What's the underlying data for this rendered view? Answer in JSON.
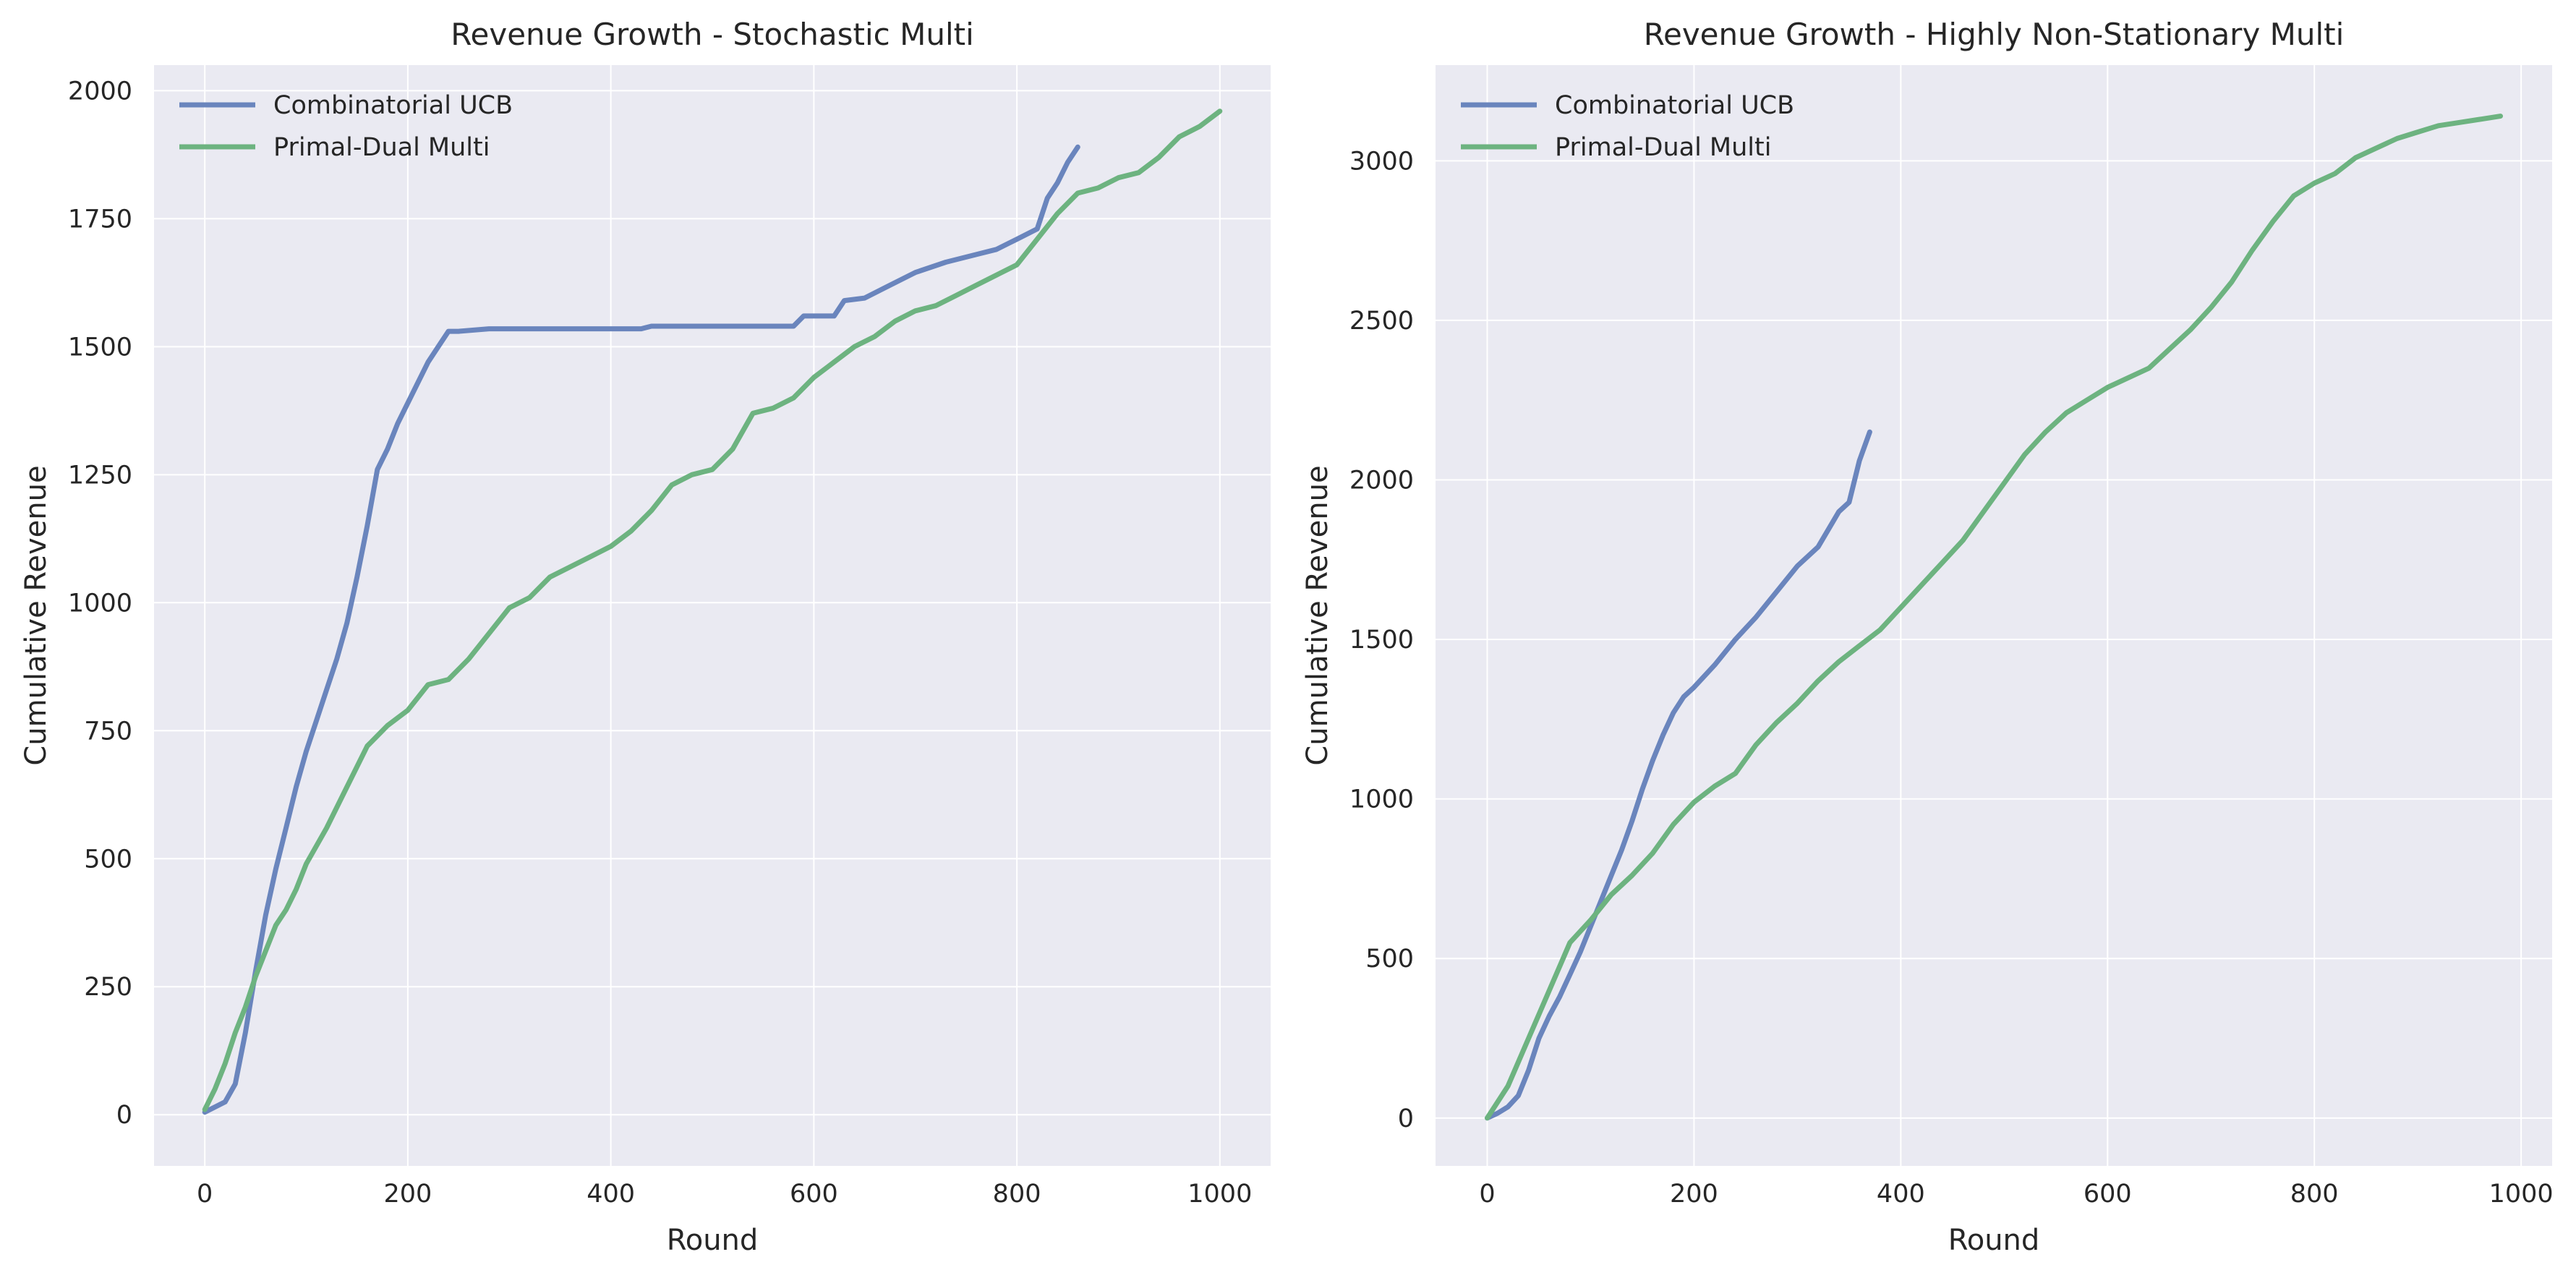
{
  "chart_data": [
    {
      "type": "line",
      "title": "Revenue Growth - Stochastic Multi",
      "xlabel": "Round",
      "ylabel": "Cumulative Revenue",
      "xlim": [
        -50,
        1050
      ],
      "ylim": [
        -100,
        2050
      ],
      "xticks": [
        0,
        200,
        400,
        600,
        800,
        1000
      ],
      "yticks": [
        0,
        250,
        500,
        750,
        1000,
        1250,
        1500,
        1750,
        2000
      ],
      "grid": true,
      "legend": "top-left",
      "series": [
        {
          "name": "Combinatorial UCB",
          "color": "#6a85bd",
          "x": [
            0,
            10,
            20,
            30,
            40,
            50,
            60,
            70,
            80,
            90,
            100,
            110,
            120,
            130,
            140,
            150,
            160,
            170,
            180,
            190,
            200,
            210,
            220,
            230,
            240,
            250,
            280,
            300,
            350,
            400,
            430,
            440,
            500,
            550,
            580,
            590,
            620,
            630,
            650,
            670,
            700,
            730,
            760,
            780,
            800,
            820,
            830,
            840,
            850,
            860
          ],
          "y": [
            5,
            15,
            25,
            60,
            160,
            280,
            390,
            480,
            560,
            640,
            710,
            770,
            830,
            890,
            960,
            1050,
            1150,
            1260,
            1300,
            1350,
            1390,
            1430,
            1470,
            1500,
            1530,
            1530,
            1535,
            1535,
            1535,
            1535,
            1535,
            1540,
            1540,
            1540,
            1540,
            1560,
            1560,
            1590,
            1595,
            1615,
            1645,
            1665,
            1680,
            1690,
            1710,
            1730,
            1790,
            1820,
            1860,
            1890
          ]
        },
        {
          "name": "Primal-Dual Multi",
          "color": "#6db380",
          "x": [
            0,
            10,
            20,
            30,
            40,
            50,
            60,
            70,
            80,
            90,
            100,
            120,
            140,
            160,
            180,
            200,
            220,
            240,
            260,
            280,
            300,
            320,
            340,
            360,
            380,
            400,
            420,
            440,
            460,
            480,
            500,
            520,
            540,
            560,
            580,
            600,
            620,
            640,
            660,
            680,
            700,
            720,
            740,
            760,
            780,
            800,
            820,
            840,
            860,
            880,
            900,
            920,
            940,
            960,
            980,
            1000
          ],
          "y": [
            10,
            50,
            100,
            160,
            210,
            270,
            320,
            370,
            400,
            440,
            490,
            560,
            640,
            720,
            760,
            790,
            840,
            850,
            890,
            940,
            990,
            1010,
            1050,
            1070,
            1090,
            1110,
            1140,
            1180,
            1230,
            1250,
            1260,
            1300,
            1370,
            1380,
            1400,
            1440,
            1470,
            1500,
            1520,
            1550,
            1570,
            1580,
            1600,
            1620,
            1640,
            1660,
            1710,
            1760,
            1800,
            1810,
            1830,
            1840,
            1870,
            1910,
            1930,
            1960
          ]
        }
      ]
    },
    {
      "type": "line",
      "title": "Revenue Growth - Highly Non-Stationary Multi",
      "xlabel": "Round",
      "ylabel": "Cumulative Revenue",
      "xlim": [
        -50,
        1030
      ],
      "ylim": [
        -150,
        3300
      ],
      "xticks": [
        0,
        200,
        400,
        600,
        800,
        1000
      ],
      "yticks": [
        0,
        500,
        1000,
        1500,
        2000,
        2500,
        3000
      ],
      "grid": true,
      "legend": "top-left",
      "series": [
        {
          "name": "Combinatorial UCB",
          "color": "#6a85bd",
          "x": [
            0,
            10,
            20,
            30,
            40,
            50,
            60,
            70,
            80,
            90,
            100,
            110,
            120,
            130,
            140,
            150,
            160,
            170,
            180,
            190,
            200,
            220,
            240,
            260,
            280,
            300,
            320,
            340,
            350,
            360,
            370
          ],
          "y": [
            0,
            15,
            35,
            70,
            150,
            250,
            320,
            380,
            450,
            520,
            600,
            680,
            760,
            840,
            930,
            1030,
            1120,
            1200,
            1270,
            1320,
            1350,
            1420,
            1500,
            1570,
            1650,
            1730,
            1790,
            1900,
            1930,
            2060,
            2150
          ]
        },
        {
          "name": "Primal-Dual Multi",
          "color": "#6db380",
          "x": [
            0,
            20,
            40,
            60,
            80,
            100,
            120,
            140,
            160,
            180,
            200,
            220,
            240,
            260,
            280,
            300,
            320,
            340,
            360,
            380,
            400,
            420,
            440,
            460,
            480,
            500,
            520,
            540,
            560,
            580,
            600,
            620,
            640,
            660,
            680,
            700,
            720,
            740,
            760,
            780,
            800,
            820,
            840,
            860,
            880,
            900,
            920,
            940,
            960,
            980
          ],
          "y": [
            0,
            100,
            250,
            400,
            550,
            620,
            700,
            760,
            830,
            920,
            990,
            1040,
            1080,
            1170,
            1240,
            1300,
            1370,
            1430,
            1480,
            1530,
            1600,
            1670,
            1740,
            1810,
            1900,
            1990,
            2080,
            2150,
            2210,
            2250,
            2290,
            2320,
            2350,
            2410,
            2470,
            2540,
            2620,
            2720,
            2810,
            2890,
            2930,
            2960,
            3010,
            3040,
            3070,
            3090,
            3110,
            3120,
            3130,
            3140
          ]
        }
      ]
    }
  ]
}
